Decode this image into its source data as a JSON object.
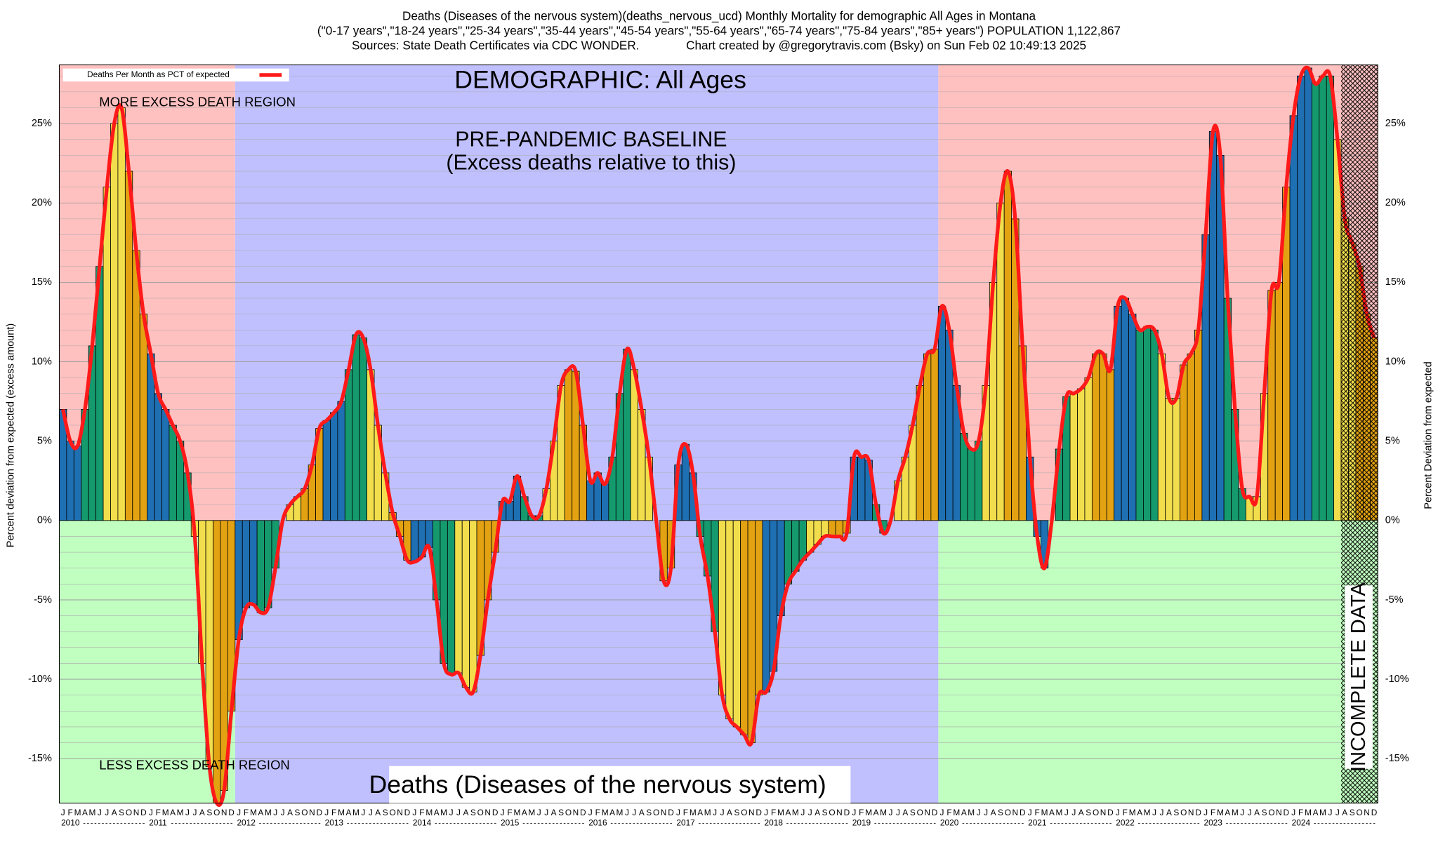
{
  "chart_data": {
    "type": "bar",
    "title": "Deaths (Diseases of the nervous system)(deaths_nervous_ucd) Monthly Mortality for demographic All Ages in Montana",
    "subtitle": "(\"0-17 years\",\"18-24 years\",\"25-34 years\",\"35-44 years\",\"45-54 years\",\"55-64 years\",\"65-74 years\",\"75-84 years\",\"85+ years\") POPULATION 1,122,867",
    "source": "Sources: State Death Certificates via CDC WONDER.              Chart created by @gregorytravis.com (Bsky) on Sun Feb 02 10:49:13 2025",
    "ylabel": "Percent deviation from expected (excess amount)",
    "y2label": "Percent Deviation from expected",
    "legend": "Deaths Per Month as PCT of expected",
    "annotations": {
      "more": "MORE EXCESS DEATH REGION",
      "less": "LESS EXCESS DEATH REGION",
      "demographic": "DEMOGRAPHIC: All Ages",
      "baseline": "PRE-PANDEMIC BASELINE",
      "baseline_note": "(Excess deaths relative to this)",
      "cause": "Deaths (Diseases of the nervous system)",
      "incomplete": "INCOMPLETE DATA"
    },
    "years": [
      "2010",
      "2011",
      "2012",
      "2013",
      "2014",
      "2015",
      "2016",
      "2017",
      "2018",
      "2019",
      "2020",
      "2021",
      "2022",
      "2023",
      "2024"
    ],
    "month_labels": [
      "J",
      "F",
      "M",
      "A",
      "M",
      "J",
      "J",
      "A",
      "S",
      "O",
      "N",
      "D"
    ],
    "baseline_years": [
      "2012",
      "2019"
    ],
    "incomplete_from": "2024-08",
    "values": [
      7,
      5,
      4.7,
      7,
      11,
      16,
      21,
      25,
      26,
      22,
      17,
      13,
      10.5,
      8,
      7,
      6,
      5,
      3,
      -1,
      -9,
      -15.5,
      -17.8,
      -17,
      -12,
      -7.5,
      -5.5,
      -5.3,
      -5.8,
      -5.5,
      -3,
      0,
      1,
      1.5,
      2,
      3.5,
      5.8,
      6.3,
      6.8,
      7.5,
      9.5,
      11.7,
      11.5,
      9.5,
      6,
      3,
      0.5,
      -1,
      -2.5,
      -2.6,
      -2.3,
      -1.7,
      -5,
      -9,
      -9.7,
      -9.6,
      -10.5,
      -10.8,
      -8.5,
      -5,
      -2,
      1.2,
      1.2,
      2.8,
      1.5,
      0.3,
      0.3,
      2,
      5,
      8.5,
      9.5,
      9.4,
      6,
      2.5,
      3,
      2.3,
      4,
      8,
      10.8,
      9.5,
      7,
      4,
      0,
      -3.8,
      -3,
      3.5,
      4.8,
      3,
      -1,
      -3.5,
      -7,
      -11,
      -12.5,
      -13,
      -13.5,
      -14,
      -11,
      -10.8,
      -9.5,
      -6,
      -4,
      -3.2,
      -2.5,
      -2,
      -1.5,
      -1,
      -1,
      -1,
      -0.8,
      4,
      4,
      3.8,
      1,
      -0.8,
      0,
      2.5,
      4,
      6,
      8.5,
      10.5,
      10.8,
      13.5,
      12,
      8.5,
      5.5,
      4.5,
      5,
      8.5,
      15,
      20,
      22,
      19,
      11,
      4,
      -1,
      -3,
      0,
      4.5,
      7.8,
      8,
      8.3,
      9,
      10.5,
      10.5,
      9.5,
      13.5,
      14,
      13,
      12,
      12.2,
      12,
      10.5,
      7.7,
      7.7,
      9.8,
      10.5,
      12,
      18,
      24.5,
      23,
      14,
      7,
      2,
      1.5,
      1.5,
      8,
      14.5,
      15,
      21,
      25.5,
      28,
      28.5,
      27.5,
      28,
      28,
      24,
      19,
      17.5,
      16,
      13,
      11.5
    ],
    "quarter_colors": [
      "#1f6fb3",
      "#159a6e",
      "#f2de4c",
      "#e3a212"
    ],
    "line_color": "#ff1a1a",
    "ylim": [
      -17.8,
      28.7
    ],
    "yticks": [
      {
        "value": -15,
        "label": "-15%"
      },
      {
        "value": -10,
        "label": "-10%"
      },
      {
        "value": -5,
        "label": "-5%"
      },
      {
        "value": 0,
        "label": "0%"
      },
      {
        "value": 5,
        "label": "5%"
      },
      {
        "value": 10,
        "label": "10%"
      },
      {
        "value": 15,
        "label": "15%"
      },
      {
        "value": 20,
        "label": "20%"
      },
      {
        "value": 25,
        "label": "25%"
      }
    ],
    "grid": true
  }
}
